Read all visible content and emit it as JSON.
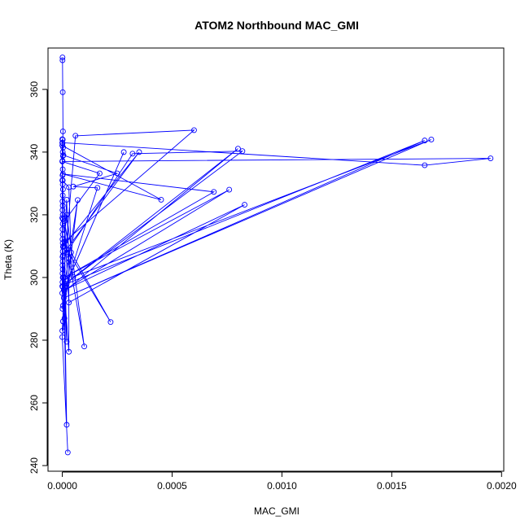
{
  "chart_data": {
    "type": "scatter",
    "title": "ATOM2 Northbound MAC_GMI",
    "xlabel": "MAC_GMI",
    "ylabel": "Theta (K)",
    "xlim": [
      -6.5e-05,
      0.00201
    ],
    "ylim": [
      238.2,
      373.2
    ],
    "xticks": [
      0,
      0.0005,
      0.001,
      0.0015,
      0.002
    ],
    "xtick_labels": [
      "0.0000",
      "0.0005",
      "0.0010",
      "0.0015",
      "0.0020"
    ],
    "yticks": [
      240,
      260,
      280,
      300,
      320,
      340,
      360
    ],
    "ytick_labels": [
      "240",
      "260",
      "280",
      "300",
      "320",
      "340",
      "360"
    ],
    "grid": false,
    "legend": "none",
    "marker": "open-circle",
    "connected": true,
    "color": "#0000ff",
    "series": [
      {
        "points": [
          [
            1e-06,
            370.2
          ],
          [
            1e-06,
            369.3
          ],
          [
            2e-06,
            359.1
          ],
          [
            3e-06,
            346.6
          ],
          [
            2e-06,
            344.0
          ],
          [
            1e-06,
            342.8
          ],
          [
            4e-06,
            341.5
          ],
          [
            2e-06,
            340.0
          ],
          [
            3e-06,
            338.8
          ],
          [
            1e-06,
            337.2
          ],
          [
            2e-06,
            334.5
          ],
          [
            1e-06,
            332.6
          ],
          [
            2e-06,
            331.0
          ],
          [
            2e-06,
            329.7
          ],
          [
            3e-06,
            328.1
          ],
          [
            2e-06,
            326.2
          ],
          [
            1e-06,
            324.3
          ],
          [
            2e-06,
            322.9
          ],
          [
            1e-06,
            321.5
          ],
          [
            2e-06,
            320.0
          ],
          [
            3e-06,
            318.6
          ],
          [
            2e-06,
            317.1
          ],
          [
            1e-06,
            315.4
          ],
          [
            2e-06,
            313.7
          ],
          [
            1e-06,
            312.2
          ],
          [
            2e-06,
            311.0
          ],
          [
            3e-06,
            309.8
          ],
          [
            2e-06,
            308.3
          ],
          [
            1e-06,
            306.6
          ],
          [
            2e-06,
            305.2
          ],
          [
            1e-06,
            303.9
          ],
          [
            2e-06,
            302.6
          ],
          [
            1e-06,
            301.3
          ],
          [
            2e-06,
            300.0
          ],
          [
            1e-06,
            298.5
          ],
          [
            2e-06,
            297.0
          ],
          [
            6e-05,
            345.2
          ],
          [
            0.0006,
            347.0
          ],
          [
            1.2e-05,
            311.5
          ],
          [
            2e-05,
            308.0
          ],
          [
            0.00032,
            339.5
          ],
          [
            0.00082,
            340.3
          ],
          [
            0.0,
            297.2
          ],
          [
            0.0008,
            341.1
          ],
          [
            0.0,
            295.0
          ],
          [
            0.0,
            343.0
          ],
          [
            0.00165,
            335.8
          ],
          [
            0.00195,
            338.0
          ],
          [
            0.0,
            337.0
          ],
          [
            0.00017,
            333.2
          ],
          [
            1e-05,
            318.0
          ],
          [
            5e-05,
            300.2
          ],
          [
            0.00168,
            344.0
          ],
          [
            7e-06,
            293.5
          ],
          [
            0.00165,
            343.7
          ],
          [
            2e-05,
            298.0
          ],
          [
            0.00028,
            340.0
          ],
          [
            7e-06,
            296.0
          ],
          [
            7e-05,
            324.7
          ],
          [
            3e-06,
            286.0
          ],
          [
            0.0,
            344.1
          ],
          [
            5e-06,
            339.0
          ],
          [
            0.00025,
            333.2
          ],
          [
            5e-05,
            329.0
          ],
          [
            0.00016,
            328.6
          ],
          [
            2.5e-05,
            299.0
          ],
          [
            3e-06,
            291.0
          ],
          [
            1e-06,
            290.0
          ],
          [
            0.0,
            342.1
          ],
          [
            0.00045,
            324.8
          ],
          [
            3e-06,
            333.0
          ],
          [
            0.00069,
            327.3
          ],
          [
            1e-05,
            300.0
          ],
          [
            0.00076,
            328.0
          ],
          [
            1e-05,
            296.0
          ],
          [
            0.00083,
            323.2
          ],
          [
            3e-05,
            292.0
          ],
          [
            0.0,
            331.0
          ],
          [
            3e-05,
            328.8
          ],
          [
            4e-05,
            308.0
          ],
          [
            0.00022,
            285.8
          ],
          [
            2e-05,
            309.0
          ],
          [
            0.00035,
            340.0
          ],
          [
            5e-06,
            310.0
          ],
          [
            2e-05,
            320.0
          ],
          [
            0.0001,
            278.0
          ],
          [
            3e-05,
            306.0
          ],
          [
            2e-05,
            324.8
          ],
          [
            1e-05,
            310.0
          ],
          [
            2e-05,
            279.5
          ],
          [
            3e-06,
            307.0
          ],
          [
            0.0,
            319.0
          ],
          [
            3e-05,
            305.0
          ],
          [
            3e-05,
            276.3
          ],
          [
            5e-06,
            300.0
          ],
          [
            2e-05,
            253.0
          ],
          [
            1e-05,
            297.0
          ],
          [
            0.0,
            283.0
          ],
          [
            1e-05,
            287.0
          ],
          [
            0.0,
            281.0
          ],
          [
            2.5e-05,
            244.2
          ]
        ]
      }
    ]
  }
}
